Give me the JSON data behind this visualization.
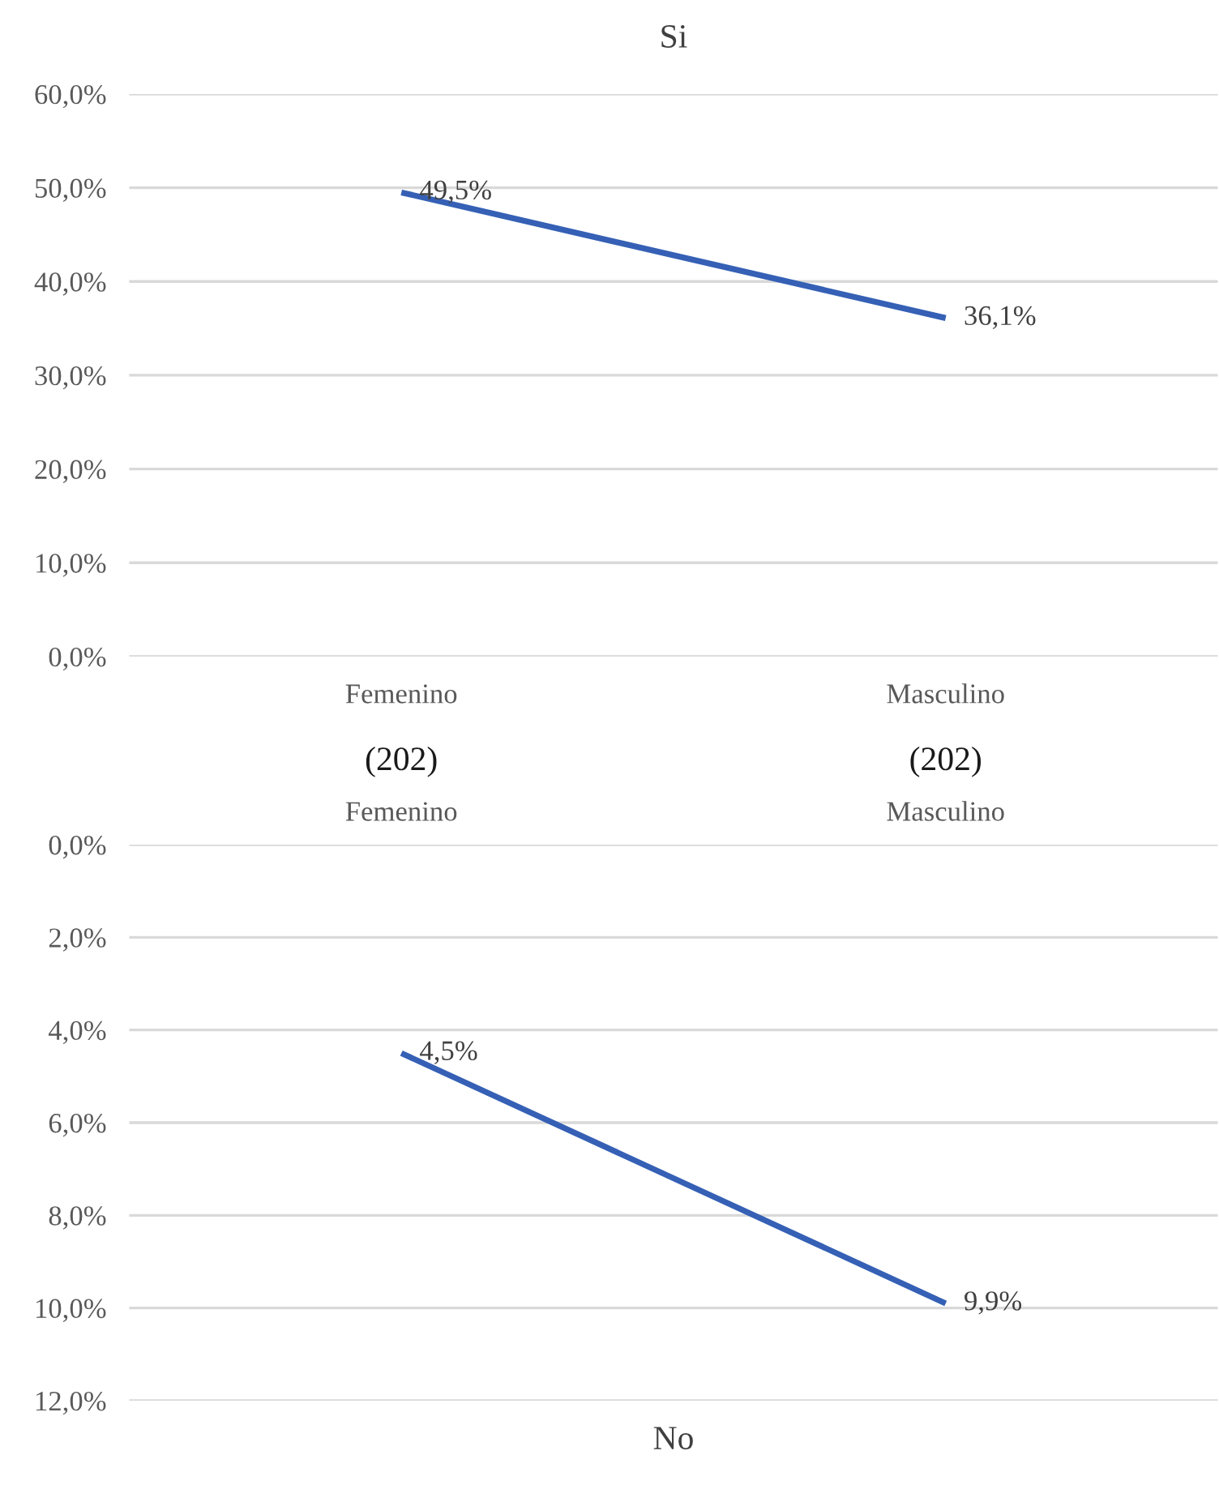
{
  "chart_data": [
    {
      "type": "line",
      "title": "Si",
      "categories": [
        "Femenino",
        "Masculino"
      ],
      "values": [
        49.5,
        36.1
      ],
      "color": "#3560b5",
      "value_labels": [
        "49,5%",
        "36,1%"
      ],
      "ylim": [
        0,
        60
      ],
      "yticks": [
        {
          "value": 0,
          "label": "0,0%"
        },
        {
          "value": 10,
          "label": "10,0%"
        },
        {
          "value": 20,
          "label": "20,0%"
        },
        {
          "value": 30,
          "label": "30,0%"
        },
        {
          "value": 40,
          "label": "40,0%"
        },
        {
          "value": 50,
          "label": "50,0%"
        },
        {
          "value": 60,
          "label": "60,0%"
        }
      ],
      "grid": "y",
      "marker": "none",
      "line_style": "solid",
      "annotations": [
        "(202)",
        "(202)"
      ]
    },
    {
      "type": "line",
      "title": "No",
      "categories": [
        "Femenino",
        "Masculino"
      ],
      "values": [
        4.5,
        9.9
      ],
      "color": "#3560b5",
      "value_labels": [
        "4,5%",
        "9,9%"
      ],
      "ylim": [
        12,
        0
      ],
      "yticks": [
        {
          "value": 0,
          "label": "0,0%"
        },
        {
          "value": 2,
          "label": "2,0%"
        },
        {
          "value": 4,
          "label": "4,0%"
        },
        {
          "value": 6,
          "label": "6,0%"
        },
        {
          "value": 8,
          "label": "8,0%"
        },
        {
          "value": 10,
          "label": "10,0%"
        },
        {
          "value": 12,
          "label": "12,0%"
        }
      ],
      "grid": "y",
      "marker": "none",
      "line_style": "solid"
    }
  ]
}
